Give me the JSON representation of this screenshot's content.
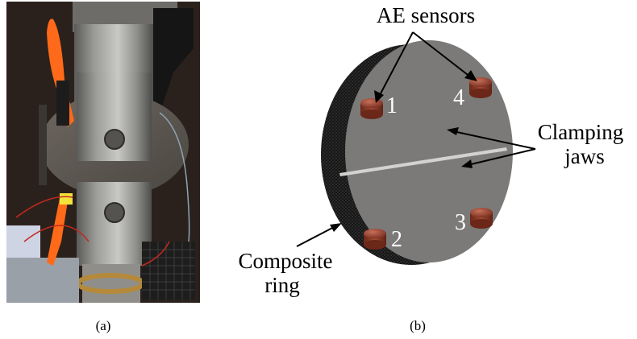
{
  "panels": {
    "a": {
      "caption": "(a)"
    },
    "b": {
      "caption": "(b)"
    }
  },
  "labels": {
    "ae_sensors": "AE sensors",
    "clamping_line1": "Clamping",
    "clamping_line2": "jaws",
    "composite_line1": "Composite",
    "composite_line2": "ring"
  },
  "sensors": [
    {
      "number": "1"
    },
    {
      "number": "2"
    },
    {
      "number": "3"
    },
    {
      "number": "4"
    }
  ],
  "colors": {
    "disk_face": "#7b7a78",
    "ring_edge": "#1c1c1c",
    "sensor": "#9a4a35",
    "photo_background": "#2b211c",
    "clamp_orange": "#ff6a1a"
  }
}
